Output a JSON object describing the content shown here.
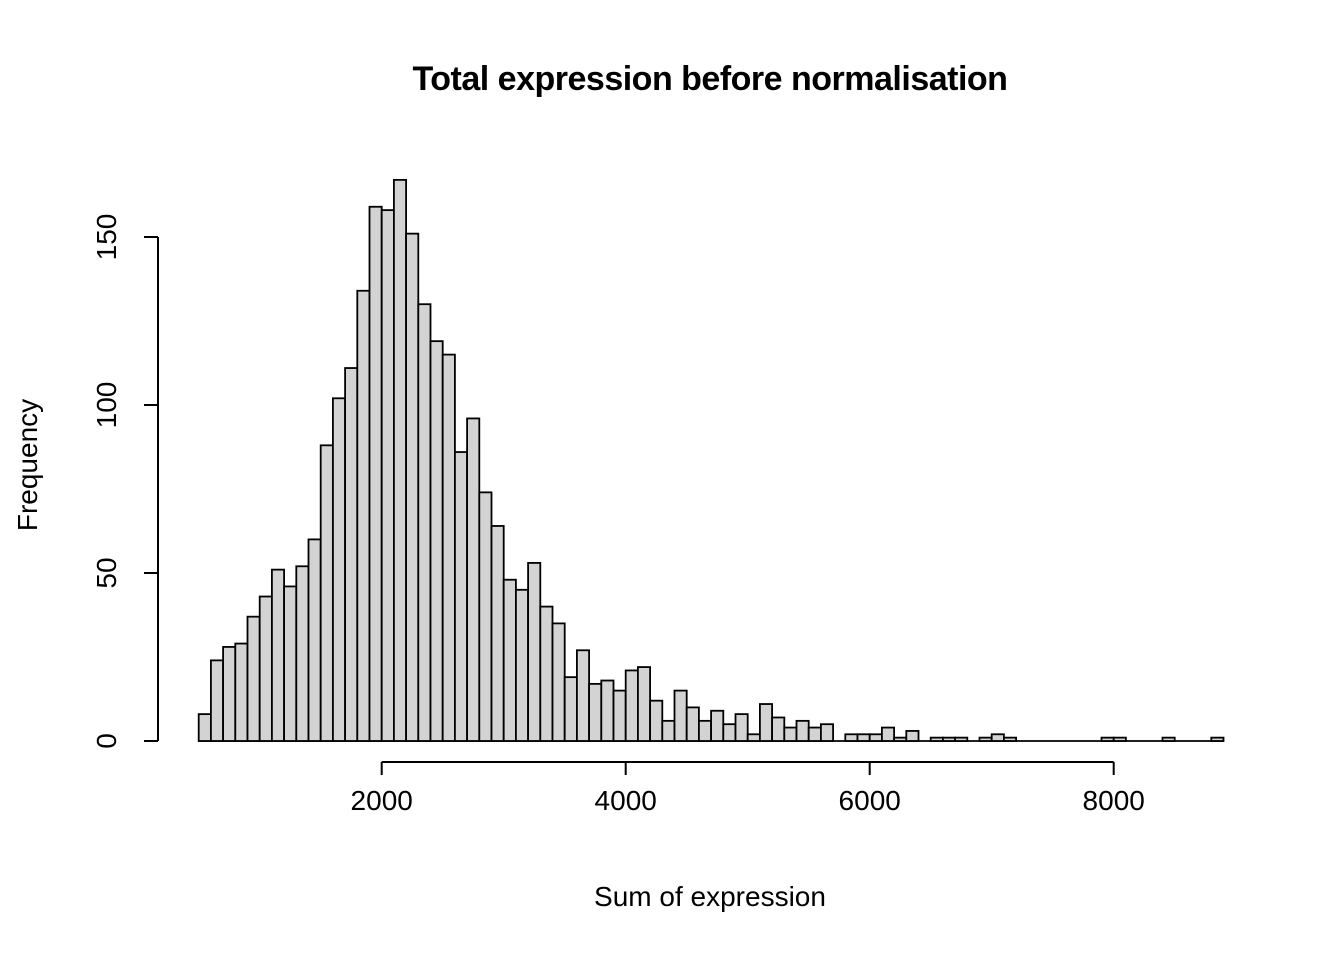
{
  "chart_data": {
    "type": "bar",
    "subtype": "histogram",
    "title": "Total expression before normalisation",
    "xlabel": "Sum of expression",
    "ylabel": "Frequency",
    "bin_start": 500,
    "bin_width": 100,
    "counts": [
      8,
      24,
      28,
      29,
      37,
      43,
      51,
      46,
      52,
      60,
      88,
      102,
      111,
      134,
      159,
      158,
      167,
      151,
      130,
      119,
      115,
      86,
      96,
      74,
      64,
      48,
      45,
      53,
      40,
      35,
      19,
      27,
      17,
      18,
      15,
      21,
      22,
      12,
      6,
      15,
      10,
      6,
      9,
      5,
      8,
      2,
      11,
      7,
      4,
      6,
      4,
      5,
      0,
      2,
      2,
      2,
      4,
      1,
      3,
      0,
      1,
      1,
      1,
      0,
      1,
      2,
      1,
      0,
      0,
      0,
      0,
      0,
      0,
      0,
      1,
      1,
      0,
      0,
      0,
      1,
      0,
      0,
      0,
      1
    ],
    "x_ticks": [
      2000,
      4000,
      6000,
      8000
    ],
    "y_ticks": [
      0,
      50,
      100,
      150
    ],
    "xlim": [
      500,
      8900
    ],
    "ylim": [
      0,
      167
    ],
    "grid": false,
    "legend": null,
    "bar_fill": "#d3d3d3",
    "bar_stroke": "#000000",
    "axis_color": "#000000",
    "background": "#ffffff"
  }
}
